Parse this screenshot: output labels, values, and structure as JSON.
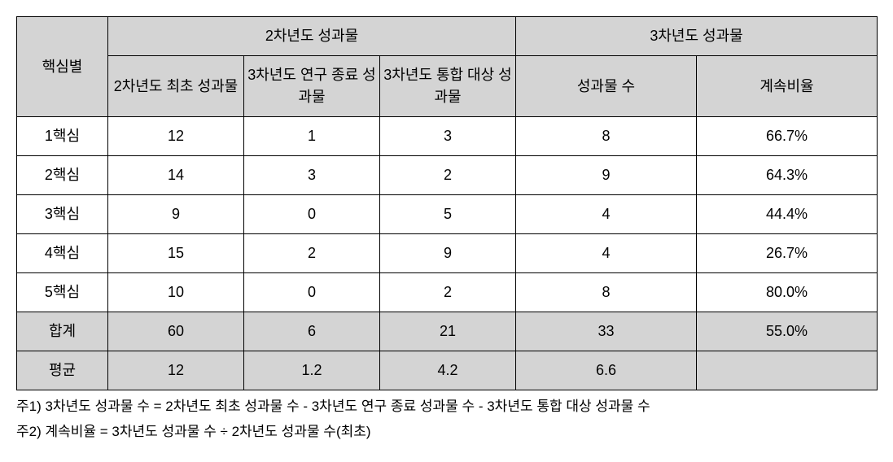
{
  "table": {
    "header": {
      "rowLabel": "핵심별",
      "group1": "2차년도  성과물",
      "group2": "3차년도  성과물",
      "col1": "2차년도 최초 성과물",
      "col2": "3차년도  연구 종료 성과물",
      "col3": "3차년도  통합 대상 성과물",
      "col4": "성과물  수",
      "col5": "계속비율"
    },
    "rows": [
      {
        "label": "1핵심",
        "c1": "12",
        "c2": "1",
        "c3": "3",
        "c4": "8",
        "c5": "66.7%"
      },
      {
        "label": "2핵심",
        "c1": "14",
        "c2": "3",
        "c3": "2",
        "c4": "9",
        "c5": "64.3%"
      },
      {
        "label": "3핵심",
        "c1": "9",
        "c2": "0",
        "c3": "5",
        "c4": "4",
        "c5": "44.4%"
      },
      {
        "label": "4핵심",
        "c1": "15",
        "c2": "2",
        "c3": "9",
        "c4": "4",
        "c5": "26.7%"
      },
      {
        "label": "5핵심",
        "c1": "10",
        "c2": "0",
        "c3": "2",
        "c4": "8",
        "c5": "80.0%"
      }
    ],
    "total": {
      "label": "합계",
      "c1": "60",
      "c2": "6",
      "c3": "21",
      "c4": "33",
      "c5": "55.0%"
    },
    "avg": {
      "label": "평균",
      "c1": "12",
      "c2": "1.2",
      "c3": "4.2",
      "c4": "6.6",
      "c5": ""
    }
  },
  "notes": {
    "note1": "주1) 3차년도 성과물 수 = 2차년도 최초 성과물 수 - 3차년도 연구 종료 성과물 수 - 3차년도 통합 대상 성과물 수",
    "note2": "주2) 계속비율 = 3차년도 성과물 수 ÷ 2차년도 성과물 수(최초)"
  },
  "colors": {
    "headerBg": "#d4d4d4",
    "border": "#000000",
    "background": "#ffffff",
    "text": "#000000"
  }
}
